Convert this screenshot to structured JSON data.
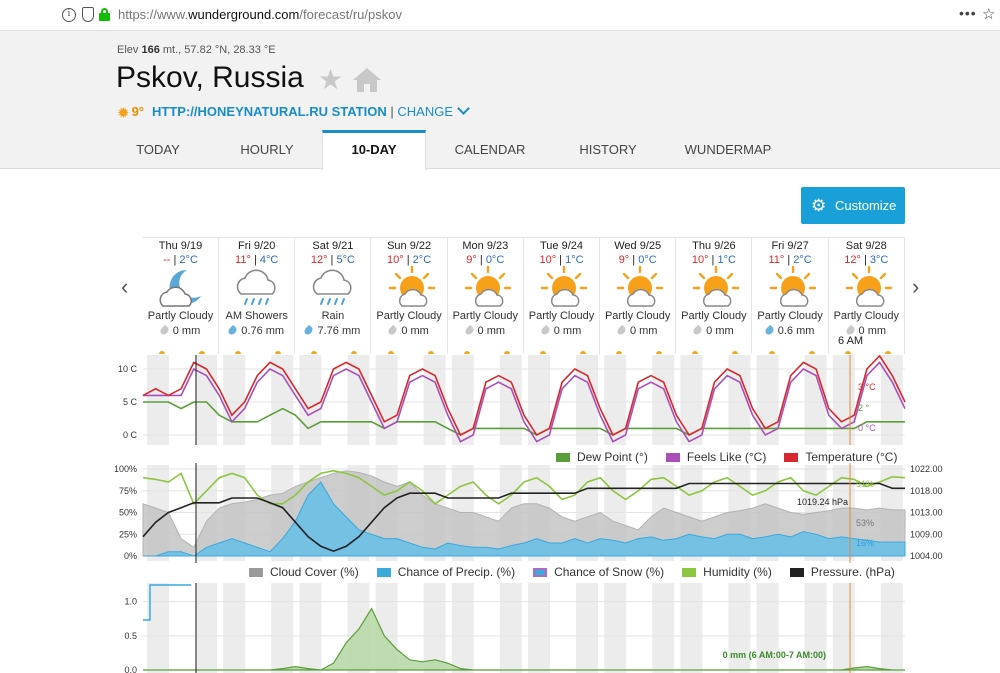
{
  "browser": {
    "url_prefix": "https://www.",
    "url_domain": "wunderground.com",
    "url_path": "/forecast/ru/pskov",
    "menu_glyph": "•••",
    "bookmark_glyph": "☆"
  },
  "header": {
    "elev_label": "Elev",
    "elev_value": "166",
    "elev_rest": "mt., 57.82 °N, 28.33 °E",
    "city": "Pskov, Russia",
    "current_temp": "9°",
    "station": "HTTP://HONEYNATURAL.RU STATION",
    "separator": "|",
    "change": "CHANGE"
  },
  "tabs": [
    {
      "label": "TODAY"
    },
    {
      "label": "HOURLY"
    },
    {
      "label": "10-DAY"
    },
    {
      "label": "CALENDAR"
    },
    {
      "label": "HISTORY"
    },
    {
      "label": "WUNDERMAP"
    }
  ],
  "active_tab": "10-DAY",
  "customize_label": "Customize",
  "nav": {
    "prev": "‹",
    "next": "›"
  },
  "days": [
    {
      "name": "Thu 9/19",
      "hi": "--",
      "lo": "2°C",
      "icon": "moon-cloud-icon",
      "cond": "Partly Cloudy",
      "precip": "0 mm",
      "drop": "gray"
    },
    {
      "name": "Fri 9/20",
      "hi": "11°",
      "lo": "4°C",
      "icon": "rain-cloud-icon",
      "cond": "AM Showers",
      "precip": "0.76 mm",
      "drop": "blue"
    },
    {
      "name": "Sat 9/21",
      "hi": "12°",
      "lo": "5°C",
      "icon": "rain-cloud-icon",
      "cond": "Rain",
      "precip": "7.76 mm",
      "drop": "blue"
    },
    {
      "name": "Sun 9/22",
      "hi": "10°",
      "lo": "2°C",
      "icon": "sun-cloud-icon",
      "cond": "Partly Cloudy",
      "precip": "0 mm",
      "drop": "gray"
    },
    {
      "name": "Mon 9/23",
      "hi": "9°",
      "lo": "0°C",
      "icon": "sun-cloud-icon",
      "cond": "Partly Cloudy",
      "precip": "0 mm",
      "drop": "gray"
    },
    {
      "name": "Tue 9/24",
      "hi": "10°",
      "lo": "1°C",
      "icon": "sun-cloud-icon",
      "cond": "Partly Cloudy",
      "precip": "0 mm",
      "drop": "gray"
    },
    {
      "name": "Wed 9/25",
      "hi": "9°",
      "lo": "0°C",
      "icon": "sun-cloud-icon",
      "cond": "Partly Cloudy",
      "precip": "0 mm",
      "drop": "gray"
    },
    {
      "name": "Thu 9/26",
      "hi": "10°",
      "lo": "1°C",
      "icon": "sun-cloud-icon",
      "cond": "Partly Cloudy",
      "precip": "0 mm",
      "drop": "gray"
    },
    {
      "name": "Fri 9/27",
      "hi": "11°",
      "lo": "2°C",
      "icon": "sun-cloud-icon",
      "cond": "Partly Cloudy",
      "precip": "0.6 mm",
      "drop": "blue"
    },
    {
      "name": "Sat 9/28",
      "hi": "12°",
      "lo": "3°C",
      "icon": "sun-cloud-icon",
      "cond": "Partly Cloudy",
      "precip": "0 mm",
      "drop": "gray"
    }
  ],
  "temp_sep": "|",
  "hover_time": "6 AM",
  "colors": {
    "temperature": "#d8272d",
    "feels_like": "#a94fb8",
    "dew_point": "#5a9e3a",
    "cloud": "#c4c4c4",
    "precip": "#3aa9dc",
    "humidity": "#8cc63f",
    "pressure": "#222222",
    "accent": "#1a8cc9"
  },
  "chart_data": [
    {
      "type": "line",
      "name": "temperature-chart",
      "y_ticks": [
        "10 C",
        "5 C",
        "0 C"
      ],
      "ylim": [
        0,
        10
      ],
      "legend": [
        "Dew Point (°)",
        "Feels Like (°C)",
        "Temperature (°C)"
      ],
      "hover_labels": [
        "3 °C",
        "2 °",
        "0 °C"
      ],
      "series": [
        {
          "name": "Temperature (°C)",
          "values": [
            6,
            7,
            6,
            7,
            11,
            10,
            7,
            3,
            5,
            9,
            11,
            10,
            7,
            4,
            5,
            10,
            11,
            10,
            6,
            2,
            3,
            9,
            10,
            9,
            4,
            0,
            1,
            8,
            9,
            8,
            3,
            0,
            1,
            8,
            10,
            9,
            4,
            0,
            1,
            8,
            9,
            8,
            3,
            0,
            1,
            8,
            10,
            9,
            4,
            1,
            2,
            9,
            11,
            10,
            4,
            2,
            3,
            10,
            12,
            9,
            5
          ]
        },
        {
          "name": "Feels Like (°C)",
          "values": [
            6,
            6,
            6,
            6,
            10,
            9,
            6,
            2,
            4,
            8,
            10,
            9,
            6,
            3,
            4,
            9,
            10,
            9,
            5,
            1,
            2,
            8,
            9,
            8,
            3,
            -1,
            0,
            7,
            8,
            7,
            2,
            -1,
            0,
            7,
            9,
            8,
            3,
            -1,
            0,
            7,
            8,
            7,
            2,
            -1,
            0,
            7,
            9,
            8,
            3,
            0,
            1,
            8,
            10,
            9,
            3,
            1,
            2,
            9,
            11,
            8,
            4
          ]
        },
        {
          "name": "Dew Point (°)",
          "values": [
            5,
            5,
            5,
            4,
            5,
            5,
            3,
            2,
            2,
            2,
            3,
            4,
            3,
            1,
            2,
            2,
            2,
            2,
            2,
            1,
            2,
            2,
            2,
            2,
            1,
            0,
            1,
            1,
            1,
            1,
            1,
            0,
            1,
            1,
            1,
            1,
            1,
            0,
            1,
            1,
            1,
            1,
            1,
            0,
            1,
            1,
            1,
            1,
            1,
            1,
            1,
            1,
            1,
            1,
            1,
            1,
            1,
            2,
            2,
            2,
            2
          ]
        }
      ]
    },
    {
      "type": "area",
      "name": "cloud-humidity-chart",
      "y_ticks_left": [
        "100%",
        "75%",
        "50%",
        "25%",
        "0%"
      ],
      "y_ticks_right": [
        "1022.00",
        "1018.00",
        "1013.00",
        "1009.00",
        "1004.00"
      ],
      "ylim": [
        0,
        100
      ],
      "ylim_right": [
        1004,
        1022
      ],
      "legend": [
        "Cloud Cover (%)",
        "Chance of Precip. (%)",
        "Chance of Snow (%)",
        "Humidity (%)",
        "Pressure. (hPa)"
      ],
      "annotations": [
        "91%",
        "1019.24 hPa",
        "53%",
        "16%"
      ],
      "series": [
        {
          "name": "Cloud Cover (%)",
          "values": [
            60,
            55,
            50,
            20,
            10,
            40,
            55,
            60,
            62,
            65,
            70,
            72,
            80,
            85,
            90,
            95,
            98,
            96,
            92,
            85,
            80,
            85,
            70,
            60,
            55,
            50,
            50,
            45,
            40,
            55,
            60,
            60,
            55,
            45,
            40,
            45,
            50,
            40,
            35,
            30,
            45,
            55,
            50,
            45,
            40,
            45,
            50,
            52,
            55,
            60,
            55,
            50,
            48,
            50,
            52,
            55,
            55,
            53,
            55,
            53,
            53
          ]
        },
        {
          "name": "Chance of Precip. (%)",
          "values": [
            0,
            0,
            5,
            5,
            0,
            10,
            15,
            20,
            15,
            10,
            5,
            20,
            40,
            70,
            85,
            60,
            45,
            30,
            25,
            20,
            20,
            15,
            10,
            8,
            15,
            12,
            10,
            10,
            8,
            12,
            15,
            20,
            15,
            15,
            20,
            15,
            20,
            18,
            15,
            20,
            22,
            18,
            20,
            25,
            22,
            20,
            25,
            25,
            20,
            22,
            25,
            22,
            28,
            25,
            20,
            22,
            20,
            18,
            16,
            16,
            16
          ]
        },
        {
          "name": "Humidity (%)",
          "values": [
            90,
            88,
            85,
            95,
            60,
            75,
            90,
            95,
            90,
            70,
            60,
            60,
            70,
            85,
            95,
            98,
            95,
            90,
            80,
            70,
            75,
            85,
            75,
            60,
            70,
            80,
            85,
            70,
            60,
            70,
            85,
            90,
            80,
            65,
            70,
            85,
            90,
            75,
            65,
            75,
            88,
            90,
            80,
            70,
            75,
            85,
            90,
            80,
            70,
            75,
            85,
            90,
            75,
            70,
            80,
            90,
            88,
            80,
            85,
            91,
            90
          ]
        },
        {
          "name": "Pressure. (hPa)",
          "values": [
            1008,
            1011,
            1013,
            1014,
            1015,
            1015,
            1015,
            1016,
            1016,
            1016,
            1015,
            1014,
            1011,
            1008,
            1006,
            1005,
            1006,
            1008,
            1011,
            1014,
            1016,
            1017,
            1017,
            1017,
            1016,
            1016,
            1016,
            1016,
            1016,
            1017,
            1017,
            1017,
            1017,
            1017,
            1017,
            1018,
            1018,
            1018,
            1018,
            1018,
            1018,
            1018,
            1018,
            1019,
            1019,
            1019,
            1019,
            1019,
            1019,
            1019,
            1019,
            1019,
            1019,
            1019,
            1019,
            1019,
            1019,
            1019,
            1019,
            1018,
            1018
          ]
        }
      ]
    },
    {
      "type": "area",
      "name": "precip-amount-chart",
      "y_ticks": [
        "1.0",
        "0.5",
        "0.0"
      ],
      "ylim": [
        0,
        1.2
      ],
      "annotation": "0 mm (6 AM:00-7 AM:00)",
      "series": [
        {
          "name": "Precip",
          "values": [
            0,
            0,
            0,
            0,
            0,
            0,
            0,
            0,
            0,
            0,
            0,
            0.02,
            0.05,
            0.02,
            0,
            0.1,
            0.4,
            0.6,
            0.9,
            0.5,
            0.3,
            0.15,
            0.12,
            0.15,
            0.1,
            0.02,
            0,
            0,
            0,
            0,
            0,
            0,
            0,
            0,
            0,
            0,
            0,
            0,
            0,
            0,
            0,
            0,
            0,
            0,
            0,
            0,
            0,
            0,
            0,
            0,
            0,
            0,
            0,
            0,
            0,
            0,
            0.03,
            0.05,
            0.02,
            0,
            0
          ]
        }
      ]
    }
  ]
}
